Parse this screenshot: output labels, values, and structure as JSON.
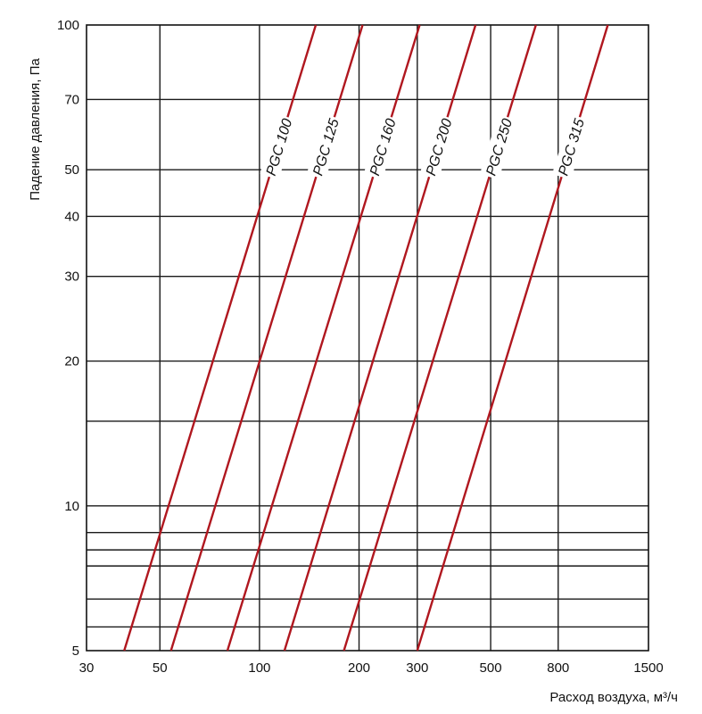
{
  "chart_data": {
    "type": "line",
    "xscale": "log",
    "yscale": "log",
    "xlim": [
      30,
      1500
    ],
    "ylim": [
      5,
      100
    ],
    "xlabel": "Расход воздуха, м³/ч",
    "ylabel": "Падение давления, Па",
    "xticks": [
      30,
      50,
      100,
      200,
      300,
      500,
      800,
      1500
    ],
    "xtick_labels": [
      "30",
      "50",
      "100",
      "200",
      "300",
      "500",
      "800",
      "1500"
    ],
    "yticks": [
      5,
      10,
      20,
      30,
      40,
      50,
      70,
      100
    ],
    "ytick_labels": [
      "5",
      "10",
      "20",
      "30",
      "40",
      "50",
      "70",
      "100"
    ],
    "xgrid": [
      50,
      100,
      200,
      300,
      500,
      800
    ],
    "ygrid": [
      5.6,
      6.4,
      7.5,
      8.1,
      8.8,
      10,
      15,
      20,
      30,
      40,
      50,
      70
    ],
    "grid": true,
    "line_color": "#b0171f",
    "series": [
      {
        "name": "PGC 100",
        "x": [
          39,
          148
        ],
        "y": [
          5,
          100
        ]
      },
      {
        "name": "PGC 125",
        "x": [
          54,
          205
        ],
        "y": [
          5,
          100
        ]
      },
      {
        "name": "PGC 160",
        "x": [
          80,
          305
        ],
        "y": [
          5,
          100
        ]
      },
      {
        "name": "PGC 200",
        "x": [
          119,
          450
        ],
        "y": [
          5,
          100
        ]
      },
      {
        "name": "PGC 250",
        "x": [
          180,
          685
        ],
        "y": [
          5,
          100
        ]
      },
      {
        "name": "PGC 315",
        "x": [
          300,
          1130
        ],
        "y": [
          5,
          100
        ]
      }
    ]
  }
}
